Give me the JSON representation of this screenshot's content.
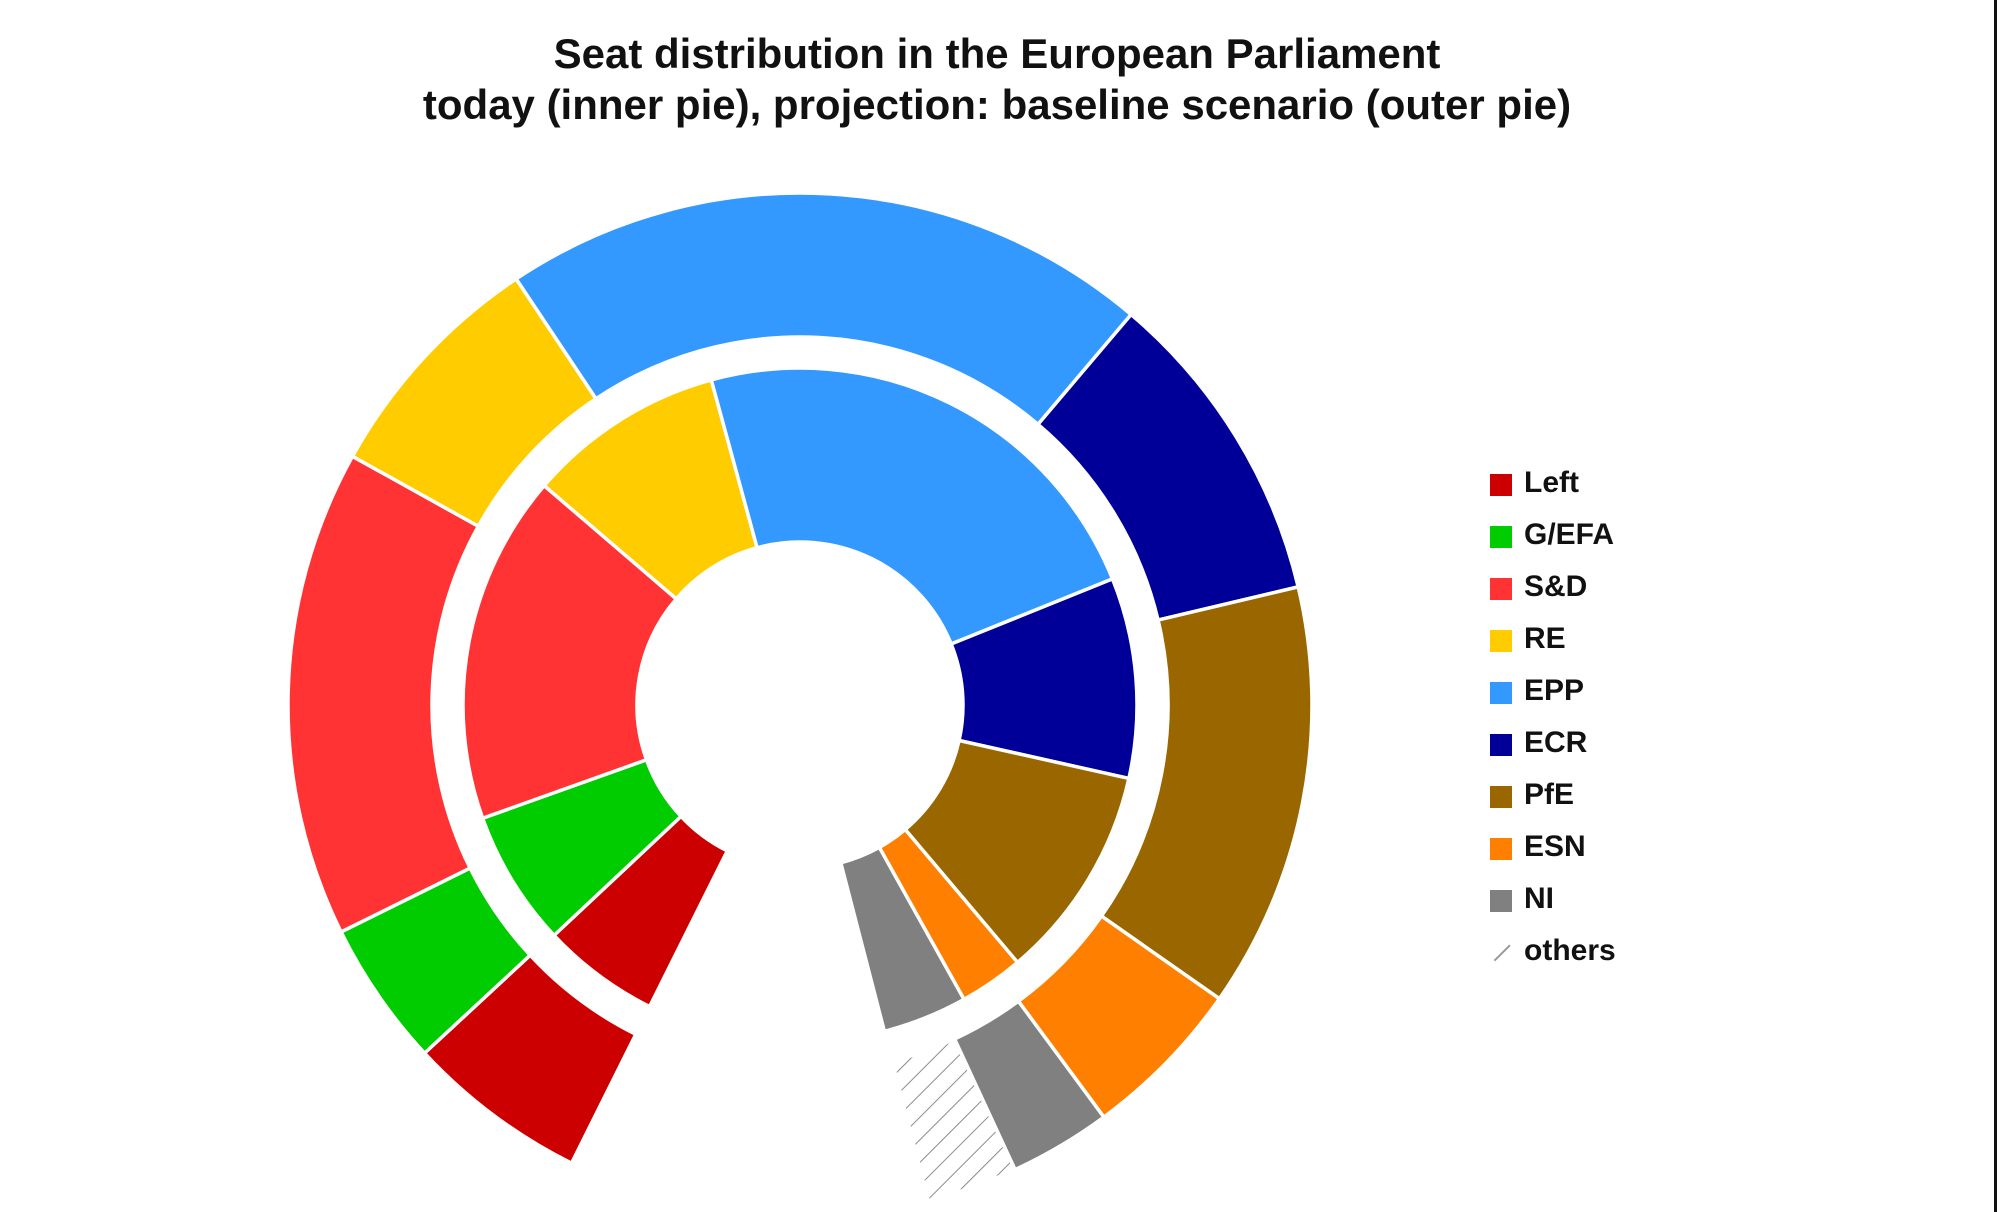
{
  "chart_data": {
    "type": "pie",
    "subtype": "nested-donut",
    "title": "Seat distribution in the European Parliament",
    "subtitle": "today (inner pie), projection: baseline scenario (outer pie)",
    "legend_position": "right",
    "categories": [
      "Left",
      "G/EFA",
      "S&D",
      "RE",
      "EPP",
      "ECR",
      "PfE",
      "ESN",
      "NI",
      "others"
    ],
    "colors": {
      "Left": "#cc0000",
      "G/EFA": "#00cc00",
      "S&D": "#ff3333",
      "RE": "#ffcc00",
      "EPP": "#3399ff",
      "ECR": "#000099",
      "PfE": "#996600",
      "ESN": "#ff8000",
      "NI": "#808080",
      "others": "#9a9a9a"
    },
    "series": [
      {
        "name": "today (inner pie)",
        "values": [
          46,
          53,
          136,
          77,
          188,
          78,
          84,
          25,
          33,
          0
        ]
      },
      {
        "name": "projection: baseline scenario (outer pie)",
        "values": [
          50,
          40,
          134,
          66,
          179,
          88,
          117,
          45,
          28,
          25
        ]
      }
    ]
  },
  "legend_items": [
    {
      "label": "Left",
      "color": "#cc0000"
    },
    {
      "label": "G/EFA",
      "color": "#00cc00"
    },
    {
      "label": "S&D",
      "color": "#ff3333"
    },
    {
      "label": "RE",
      "color": "#ffcc00"
    },
    {
      "label": "EPP",
      "color": "#3399ff"
    },
    {
      "label": "ECR",
      "color": "#000099"
    },
    {
      "label": "PfE",
      "color": "#996600"
    },
    {
      "label": "ESN",
      "color": "#ff8000"
    },
    {
      "label": "NI",
      "color": "#808080"
    },
    {
      "label": "others",
      "color": "hatched"
    }
  ]
}
